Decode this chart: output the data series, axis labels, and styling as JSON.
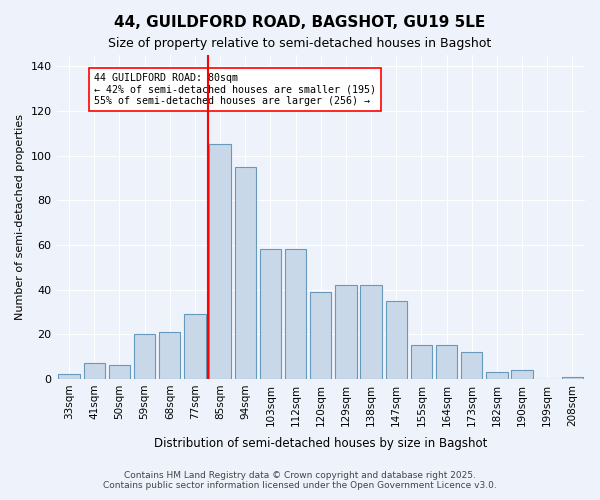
{
  "title1": "44, GUILDFORD ROAD, BAGSHOT, GU19 5LE",
  "title2": "Size of property relative to semi-detached houses in Bagshot",
  "xlabel": "Distribution of semi-detached houses by size in Bagshot",
  "ylabel": "Number of semi-detached properties",
  "categories": [
    "33sqm",
    "41sqm",
    "50sqm",
    "59sqm",
    "68sqm",
    "77sqm",
    "85sqm",
    "94sqm",
    "103sqm",
    "112sqm",
    "120sqm",
    "129sqm",
    "138sqm",
    "147sqm",
    "155sqm",
    "164sqm",
    "173sqm",
    "182sqm",
    "190sqm",
    "199sqm",
    "208sqm"
  ],
  "bar_heights": [
    2,
    7,
    6,
    20,
    21,
    29,
    105,
    95,
    58,
    58,
    39,
    42,
    42,
    35,
    15,
    15,
    12,
    3,
    4,
    0,
    1
  ],
  "bar_color": "#c8d8e8",
  "bar_edge_color": "#6699bb",
  "annotation_title": "44 GUILDFORD ROAD: 80sqm",
  "annotation_line1": "← 42% of semi-detached houses are smaller (195)",
  "annotation_line2": "55% of semi-detached houses are larger (256) →",
  "ylim": [
    0,
    145
  ],
  "yticks": [
    0,
    20,
    40,
    60,
    80,
    100,
    120,
    140
  ],
  "footer1": "Contains HM Land Registry data © Crown copyright and database right 2025.",
  "footer2": "Contains public sector information licensed under the Open Government Licence v3.0.",
  "bg_color": "#eef2fa",
  "plot_bg_color": "#eef2fa"
}
